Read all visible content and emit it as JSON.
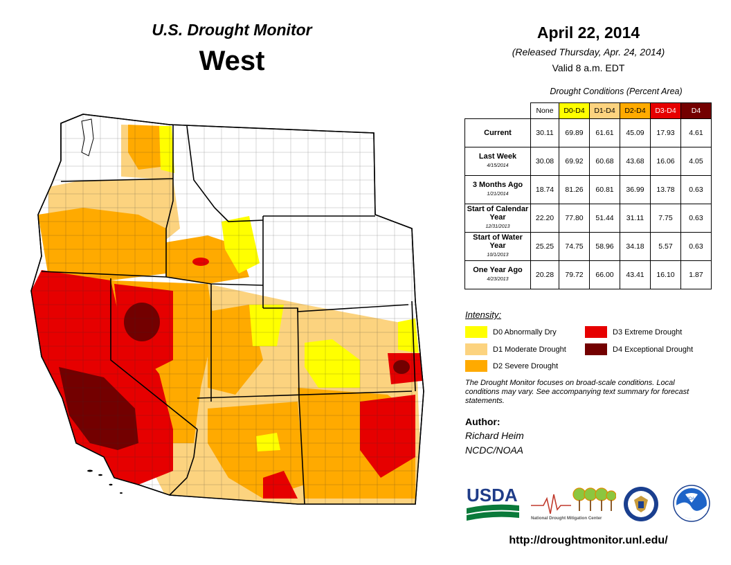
{
  "header": {
    "title": "U.S. Drought Monitor",
    "region": "West",
    "date": "April 22, 2014",
    "released": "(Released Thursday, Apr. 24, 2014)",
    "valid": "Valid  8 a.m. EDT"
  },
  "table": {
    "caption": "Drought Conditions (Percent Area)",
    "columns": [
      "None",
      "D0-D4",
      "D1-D4",
      "D2-D4",
      "D3-D4",
      "D4"
    ],
    "rows": [
      {
        "label": "Current",
        "date": "",
        "values": [
          "30.11",
          "69.89",
          "61.61",
          "45.09",
          "17.93",
          "4.61"
        ]
      },
      {
        "label": "Last Week",
        "date": "4/15/2014",
        "values": [
          "30.08",
          "69.92",
          "60.68",
          "43.68",
          "16.06",
          "4.05"
        ]
      },
      {
        "label": "3 Months Ago",
        "date": "1/21/2014",
        "values": [
          "18.74",
          "81.26",
          "60.81",
          "36.99",
          "13.78",
          "0.63"
        ]
      },
      {
        "label": "Start of Calendar Year",
        "date": "12/31/2013",
        "values": [
          "22.20",
          "77.80",
          "51.44",
          "31.11",
          "7.75",
          "0.63"
        ]
      },
      {
        "label": "Start of Water Year",
        "date": "10/1/2013",
        "values": [
          "25.25",
          "74.75",
          "58.96",
          "34.18",
          "5.57",
          "0.63"
        ]
      },
      {
        "label": "One Year Ago",
        "date": "4/23/2013",
        "values": [
          "20.28",
          "79.72",
          "66.00",
          "43.41",
          "16.10",
          "1.87"
        ]
      }
    ]
  },
  "legend": {
    "title": "Intensity:",
    "items": [
      {
        "label": "D0 Abnormally Dry",
        "color": "#ffff00"
      },
      {
        "label": "D1 Moderate Drought",
        "color": "#fcd37f"
      },
      {
        "label": "D2 Severe Drought",
        "color": "#ffaa00"
      },
      {
        "label": "D3 Extreme Drought",
        "color": "#e60000"
      },
      {
        "label": "D4 Exceptional Drought",
        "color": "#730000"
      }
    ]
  },
  "note": "The Drought Monitor focuses on broad-scale conditions. Local conditions may vary. See accompanying text summary for forecast statements.",
  "author": {
    "label": "Author:",
    "name": "Richard Heim",
    "org": "NCDC/NOAA"
  },
  "logos": {
    "usda": "USDA",
    "ndmc": "National Drought Mitigation Center",
    "noaa": "NOAA"
  },
  "url": "http://droughtmonitor.unl.edu/",
  "map": {
    "states": [
      "WA",
      "OR",
      "CA",
      "ID",
      "NV",
      "MT",
      "WY",
      "UT",
      "AZ",
      "CO",
      "NM",
      "KS"
    ]
  }
}
